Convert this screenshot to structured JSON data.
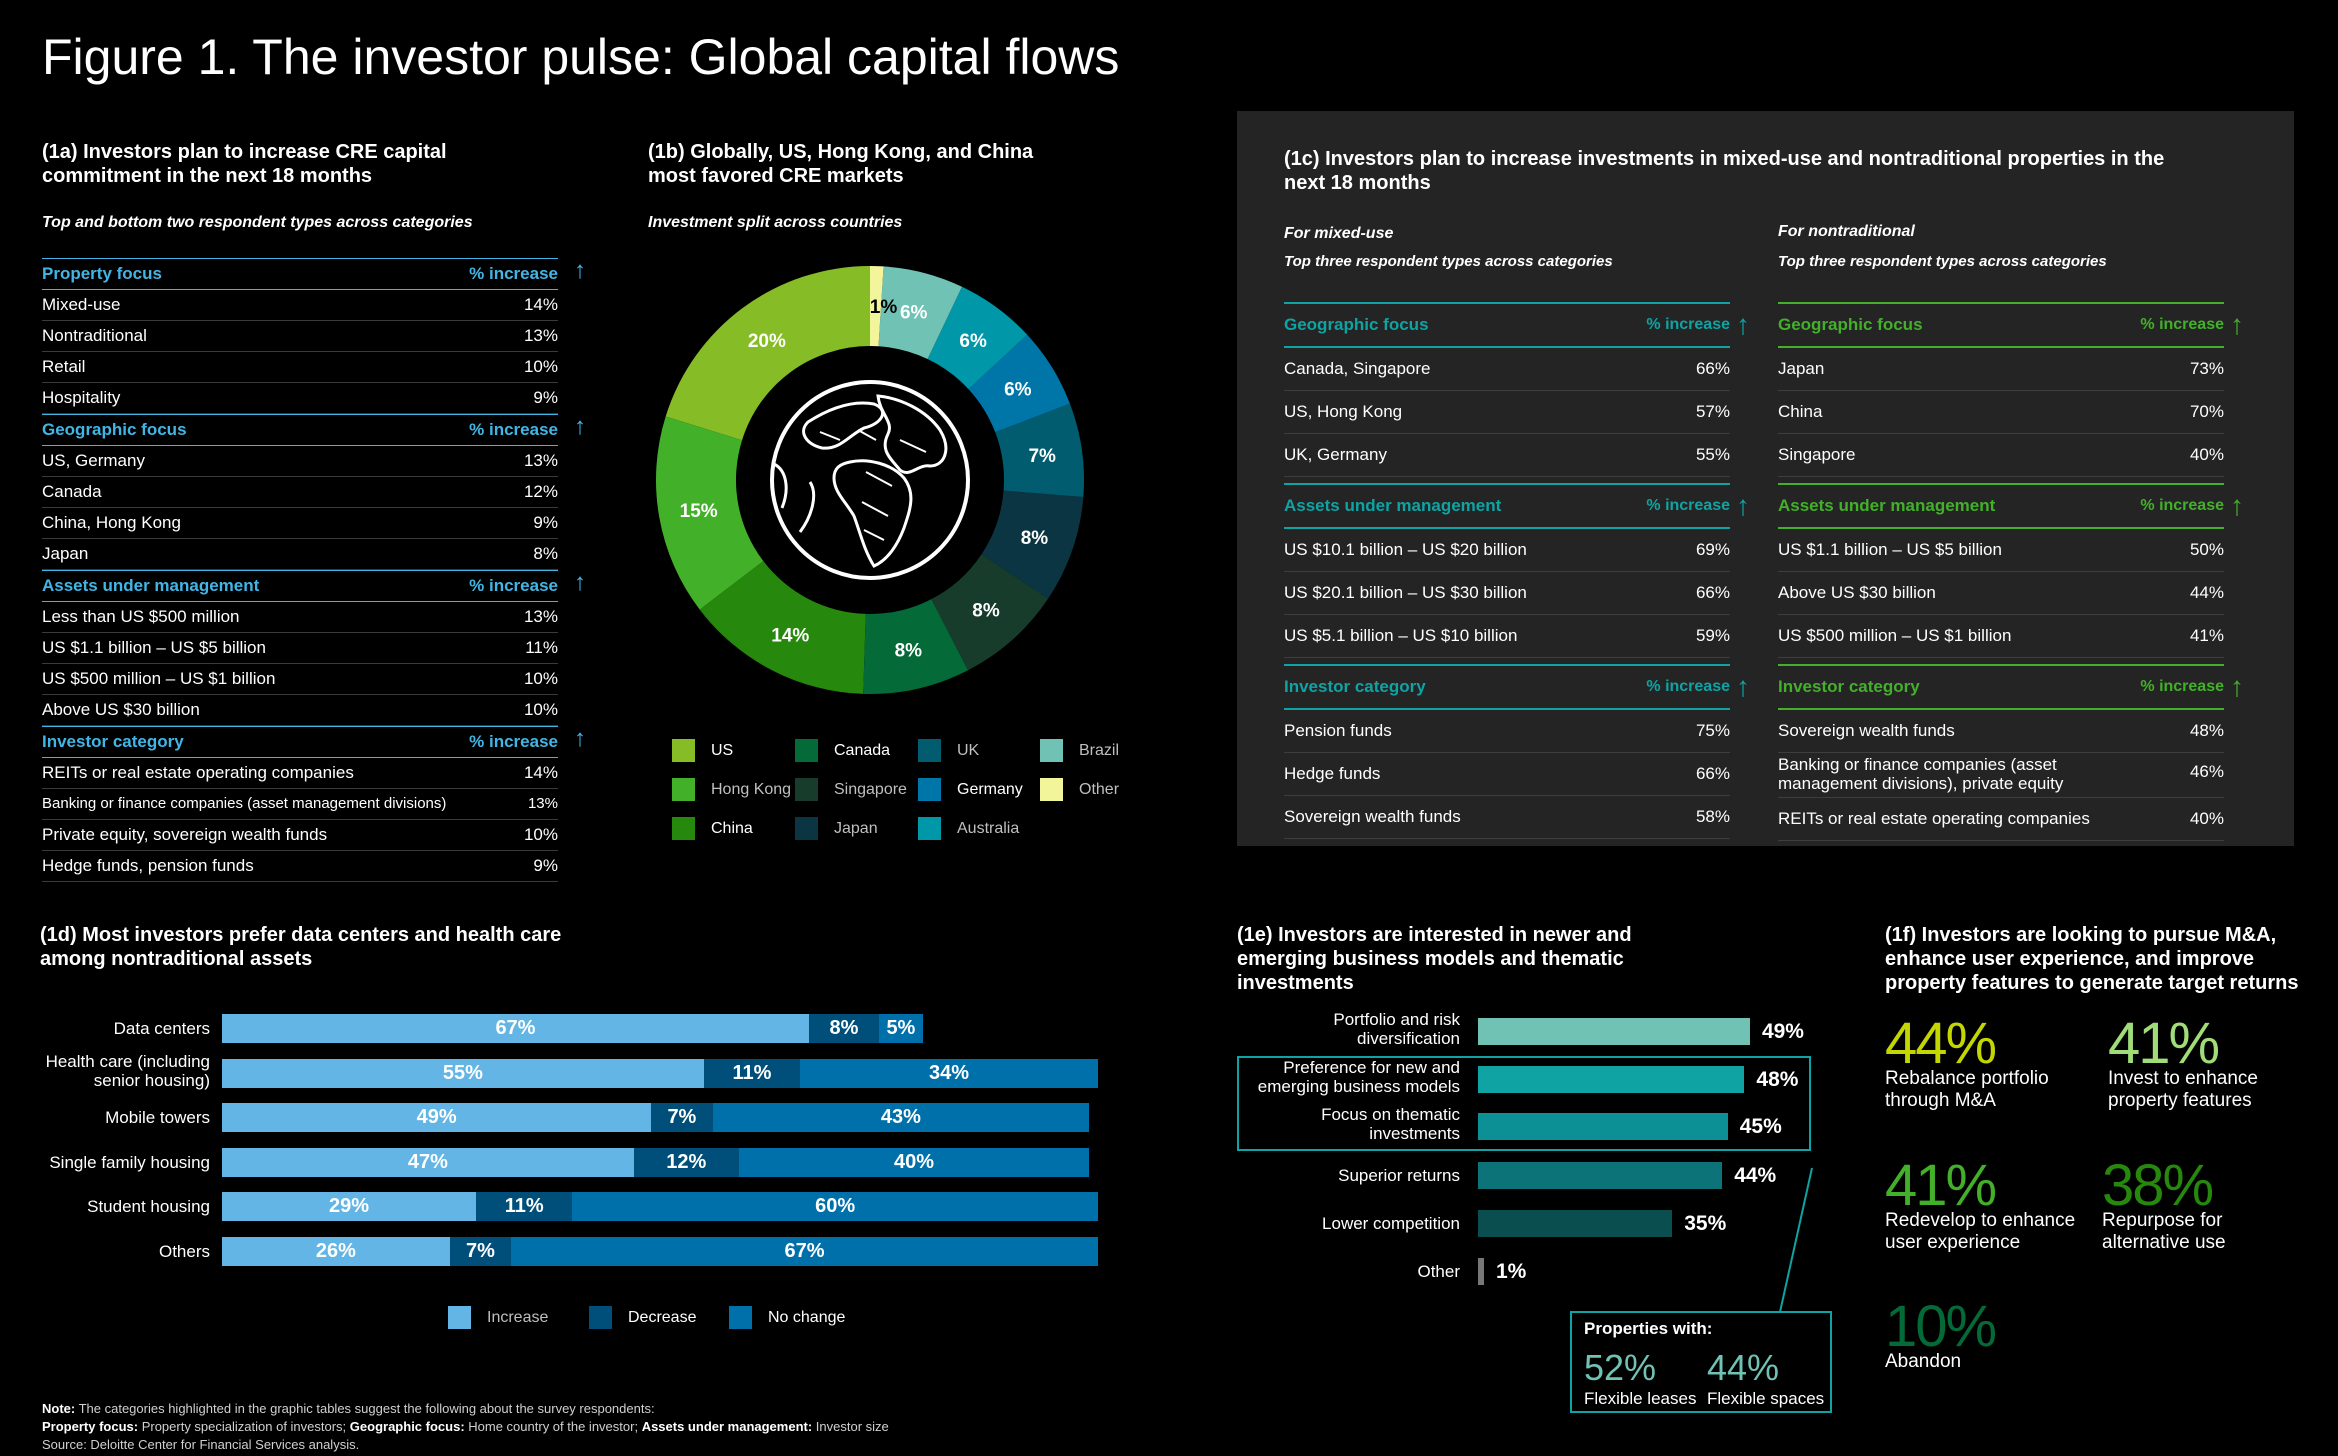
{
  "title": "Figure 1. The investor pulse: Global capital flows",
  "p1a": {
    "title_1": "(1a) Investors plan to increase CRE capital",
    "title_2": "commitment in the next 18 months",
    "subtitle": "Top and bottom two respondent types across categories",
    "col_label": "% increase",
    "groups": [
      {
        "header": "Property focus",
        "rows": [
          [
            "Mixed-use",
            "14%"
          ],
          [
            "Nontraditional",
            "13%"
          ],
          [
            "Retail",
            "10%"
          ],
          [
            "Hospitality",
            "9%"
          ]
        ]
      },
      {
        "header": "Geographic focus",
        "rows": [
          [
            "US, Germany",
            "13%"
          ],
          [
            "Canada",
            "12%"
          ],
          [
            "China, Hong Kong",
            "9%"
          ],
          [
            "Japan",
            "8%"
          ]
        ]
      },
      {
        "header": "Assets under management",
        "rows": [
          [
            "Less than US $500 million",
            "13%"
          ],
          [
            "US $1.1 billion – US $5 billion",
            "11%"
          ],
          [
            "US $500 million – US $1 billion",
            "10%"
          ],
          [
            "Above US $30 billion",
            "10%"
          ]
        ]
      },
      {
        "header": "Investor category",
        "rows": [
          [
            "REITs or real estate operating companies",
            "14%"
          ],
          [
            "Banking or finance companies (asset management divisions)",
            "13%"
          ],
          [
            "Private equity, sovereign wealth funds",
            "10%"
          ],
          [
            "Hedge funds, pension funds",
            "9%"
          ]
        ]
      }
    ]
  },
  "p1b": {
    "title_1": "(1b) Globally, US, Hong Kong, and China",
    "title_2": "most favored CRE markets",
    "subtitle": "Investment split across countries"
  },
  "p1c": {
    "title_1": "(1c) Investors plan to increase investments in mixed-use and nontraditional properties in the",
    "title_2": "next 18 months",
    "left_sub1": "For mixed-use",
    "left_sub2": "Top three respondent types across categories",
    "right_sub1": "For nontraditional",
    "right_sub2": "Top three respondent types across categories",
    "col_label": "% increase",
    "left": [
      {
        "header": "Geographic focus",
        "rows": [
          [
            "Canada, Singapore",
            "66%"
          ],
          [
            "US, Hong Kong",
            "57%"
          ],
          [
            "UK, Germany",
            "55%"
          ]
        ]
      },
      {
        "header": "Assets under management",
        "rows": [
          [
            "US $10.1 billion – US $20 billion",
            "69%"
          ],
          [
            "US $20.1 billion – US $30 billion",
            "66%"
          ],
          [
            "US $5.1 billion – US $10 billion",
            "59%"
          ]
        ]
      },
      {
        "header": "Investor category",
        "rows": [
          [
            "Pension funds",
            "75%"
          ],
          [
            "Hedge funds",
            "66%"
          ],
          [
            "Sovereign wealth funds",
            "58%"
          ]
        ]
      }
    ],
    "right": [
      {
        "header": "Geographic focus",
        "rows": [
          [
            "Japan",
            "73%"
          ],
          [
            "China",
            "70%"
          ],
          [
            "Singapore",
            "40%"
          ]
        ]
      },
      {
        "header": "Assets under management",
        "rows": [
          [
            "US $1.1 billion – US $5 billion",
            "50%"
          ],
          [
            "Above US $30 billion",
            "44%"
          ],
          [
            "US $500 million – US $1 billion",
            "41%"
          ]
        ]
      },
      {
        "header": "Investor category",
        "rows": [
          [
            "Sovereign wealth funds",
            "48%"
          ],
          [
            "Banking or finance companies (asset management divisions), private equity",
            "46%"
          ],
          [
            "REITs or real estate operating companies",
            "40%"
          ]
        ]
      }
    ]
  },
  "p1d": {
    "title_1": "(1d) Most investors prefer data centers and health care",
    "title_2": "among nontraditional  assets"
  },
  "p1e": {
    "title_1": "(1e) Investors are interested in newer and",
    "title_2": "emerging business models and thematic",
    "title_3": "investments",
    "callout_title": "Properties with:",
    "callout_1_value": "52%",
    "callout_1_label": "Flexible leases",
    "callout_2_value": "44%",
    "callout_2_label": "Flexible spaces"
  },
  "p1f": {
    "title_1": "(1f) Investors are looking to pursue M&A,",
    "title_2": "enhance user experience, and improve",
    "title_3": "property features to generate target returns",
    "items": [
      {
        "value": "44%",
        "label_1": "Rebalance portfolio",
        "label_2": "through M&A",
        "color": "#c4d600"
      },
      {
        "value": "41%",
        "label_1": "Invest to enhance",
        "label_2": "property features",
        "color": "#a0dc78"
      },
      {
        "value": "41%",
        "label_1": "Redevelop to enhance",
        "label_2": "user experience",
        "color": "#43b02a"
      },
      {
        "value": "38%",
        "label_1": "Repurpose for",
        "label_2": "alternative use",
        "color": "#26890d"
      },
      {
        "value": "10%",
        "label_1": "Abandon",
        "label_2": "",
        "color": "#046a38"
      }
    ]
  },
  "note": {
    "l1_bold": "Note:",
    "l1": " The categories highlighted in the graphic tables suggest the following about the survey respondents:",
    "l2_b1": "Property focus:",
    "l2_t1": " Property specialization of investors; ",
    "l2_b2": "Geographic focus:",
    "l2_t2": " Home country of the investor; ",
    "l2_b3": "Assets under management:",
    "l2_t3": " Investor size",
    "l3": "Source: Deloitte Center for Financial Services analysis."
  },
  "chart_data": [
    {
      "type": "pie",
      "title": "(1b) Globally, US, Hong Kong, and China most favored CRE markets",
      "subtitle": "Investment split across countries",
      "slices": [
        {
          "name": "US",
          "value": 20,
          "color": "#86bc25"
        },
        {
          "name": "Hong Kong",
          "value": 15,
          "color": "#43b02a"
        },
        {
          "name": "China",
          "value": 14,
          "color": "#26890d"
        },
        {
          "name": "Canada",
          "value": 8,
          "color": "#046a38"
        },
        {
          "name": "Singapore",
          "value": 8,
          "color": "#173c2b"
        },
        {
          "name": "Japan",
          "value": 8,
          "color": "#0c3544"
        },
        {
          "name": "UK",
          "value": 7,
          "color": "#005c6e"
        },
        {
          "name": "Germany",
          "value": 6,
          "color": "#0076a8"
        },
        {
          "name": "Australia",
          "value": 6,
          "color": "#0097a9"
        },
        {
          "name": "Brazil",
          "value": 6,
          "color": "#6fc2b4"
        },
        {
          "name": "Other",
          "value": 1,
          "color": "#f3f59b"
        }
      ],
      "legend": [
        "US",
        "Canada",
        "UK",
        "Brazil",
        "Hong Kong",
        "Singapore",
        "Germany",
        "Other",
        "China",
        "Japan",
        "Australia"
      ]
    },
    {
      "type": "bar",
      "orientation": "horizontal-stacked",
      "title": "(1d) Most investors prefer data centers and health care among nontraditional assets",
      "categories": [
        "Data centers",
        "Health care (including senior housing)",
        "Mobile towers",
        "Single family housing",
        "Student housing",
        "Others"
      ],
      "series": [
        {
          "name": "Increase",
          "values": [
            67,
            55,
            49,
            47,
            29,
            26
          ],
          "color": "#62b5e5"
        },
        {
          "name": "Decrease",
          "values": [
            8,
            11,
            7,
            12,
            11,
            7
          ],
          "color": "#004f7a"
        },
        {
          "name": "No change",
          "values": [
            5,
            34,
            43,
            40,
            60,
            67
          ],
          "color": "#0070ab"
        }
      ]
    },
    {
      "type": "bar",
      "orientation": "horizontal",
      "title": "(1e) Investors are interested in newer and emerging business models and thematic investments",
      "categories": [
        "Portfolio and risk diversification",
        "Preference for new and emerging business models",
        "Focus on thematic investments",
        "Superior returns",
        "Lower competition",
        "Other"
      ],
      "values": [
        49,
        48,
        45,
        44,
        35,
        1
      ],
      "colors": [
        "#6fc2b4",
        "#0fa3a3",
        "#0d8f96",
        "#0c7378",
        "#0b4e50",
        "#777777"
      ]
    }
  ]
}
